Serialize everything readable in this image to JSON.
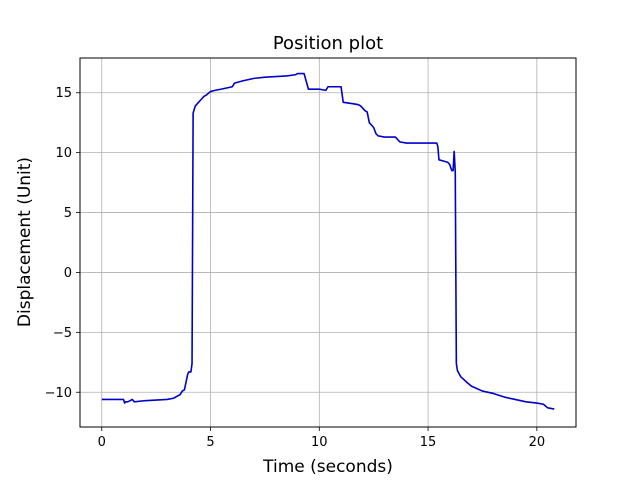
{
  "chart_data": {
    "type": "line",
    "title": "Position plot",
    "xlabel": "Time (seconds)",
    "ylabel": "Displacement (Unit)",
    "xlim": [
      -1,
      21.8
    ],
    "ylim": [
      -12.9,
      17.9
    ],
    "xticks": [
      0,
      5,
      10,
      15,
      20
    ],
    "yticks": [
      -10,
      -5,
      0,
      5,
      10,
      15
    ],
    "xtick_labels": [
      "0",
      "5",
      "10",
      "15",
      "20"
    ],
    "ytick_labels": [
      "−10",
      "−5",
      "0",
      "5",
      "10",
      "15"
    ],
    "grid": true,
    "line_color": "#0000cc",
    "series": [
      {
        "x": [
          0,
          0.5,
          0.9,
          1.0,
          1.05,
          1.1,
          1.2,
          1.3,
          1.4,
          1.5,
          2.0,
          2.5,
          3.0,
          3.3,
          3.5,
          3.6,
          3.7,
          3.8,
          3.95,
          4.0,
          4.05,
          4.1,
          4.15,
          4.2,
          4.25,
          4.3,
          4.4,
          4.5,
          4.6,
          4.7,
          4.8,
          5.0,
          5.2,
          5.5,
          6.0,
          6.1,
          6.5,
          7.0,
          7.5,
          8.0,
          8.5,
          8.9,
          9.0,
          9.1,
          9.3,
          9.5,
          10.0,
          10.3,
          10.4,
          11.0,
          11.1,
          11.5,
          11.8,
          11.9,
          12.0,
          12.1,
          12.2,
          12.3,
          12.5,
          12.6,
          12.7,
          13.0,
          13.5,
          13.7,
          14.0,
          14.5,
          15.0,
          15.3,
          15.4,
          15.45,
          15.5,
          15.7,
          15.9,
          16.0,
          16.05,
          16.1,
          16.15,
          16.2,
          16.25,
          16.3,
          16.35,
          16.5,
          16.8,
          17.0,
          17.5,
          18.0,
          18.5,
          19.0,
          19.5,
          20.0,
          20.3,
          20.5,
          20.8
        ],
        "y": [
          -10.6,
          -10.6,
          -10.6,
          -10.6,
          -10.9,
          -10.8,
          -10.8,
          -10.7,
          -10.6,
          -10.8,
          -10.7,
          -10.65,
          -10.6,
          -10.5,
          -10.3,
          -10.2,
          -9.9,
          -9.8,
          -8.5,
          -8.3,
          -8.3,
          -8.3,
          -7.6,
          13.3,
          13.6,
          13.9,
          14.1,
          14.3,
          14.5,
          14.7,
          14.8,
          15.1,
          15.2,
          15.3,
          15.5,
          15.8,
          16.0,
          16.2,
          16.3,
          16.35,
          16.4,
          16.5,
          16.6,
          16.6,
          16.6,
          15.3,
          15.3,
          15.2,
          15.5,
          15.5,
          14.2,
          14.1,
          14.0,
          13.9,
          13.7,
          13.5,
          13.4,
          12.5,
          12.1,
          11.6,
          11.4,
          11.3,
          11.3,
          10.9,
          10.8,
          10.8,
          10.8,
          10.8,
          10.8,
          10.5,
          9.4,
          9.3,
          9.2,
          9.0,
          8.7,
          8.5,
          8.5,
          10.1,
          8.4,
          -7.6,
          -8.2,
          -8.7,
          -9.2,
          -9.5,
          -9.9,
          -10.1,
          -10.4,
          -10.6,
          -10.8,
          -10.9,
          -11.0,
          -11.3,
          -11.4
        ]
      }
    ]
  }
}
